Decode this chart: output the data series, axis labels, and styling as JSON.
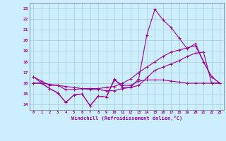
{
  "xlabel": "Windchill (Refroidissement éolien,°C)",
  "x_values": [
    0,
    1,
    2,
    3,
    4,
    5,
    6,
    7,
    8,
    9,
    10,
    11,
    12,
    13,
    14,
    15,
    16,
    17,
    18,
    19,
    20,
    21,
    22,
    23
  ],
  "series1": [
    16.6,
    16.0,
    15.5,
    15.1,
    14.2,
    14.9,
    15.0,
    13.9,
    14.8,
    14.7,
    16.4,
    15.6,
    15.6,
    16.4,
    20.5,
    22.9,
    21.9,
    21.2,
    20.2,
    19.2,
    19.7,
    18.0,
    16.6,
    16.0
  ],
  "series2": [
    16.0,
    16.0,
    15.9,
    15.8,
    15.7,
    15.6,
    15.5,
    15.4,
    15.4,
    15.3,
    15.3,
    15.5,
    15.6,
    15.8,
    16.5,
    17.2,
    17.5,
    17.8,
    18.1,
    18.5,
    18.8,
    18.9,
    16.0,
    16.0
  ],
  "series3": [
    16.6,
    16.2,
    15.8,
    15.8,
    15.4,
    15.4,
    15.5,
    15.5,
    15.5,
    15.6,
    15.7,
    16.0,
    16.4,
    17.0,
    17.5,
    18.0,
    18.5,
    18.9,
    19.1,
    19.3,
    19.5,
    18.0,
    16.6,
    16.0
  ],
  "series4": [
    16.0,
    16.0,
    15.5,
    15.1,
    14.2,
    14.9,
    15.0,
    13.9,
    14.8,
    14.7,
    16.3,
    15.8,
    15.8,
    16.2,
    16.3,
    16.3,
    16.3,
    16.2,
    16.1,
    16.0,
    16.0,
    16.0,
    16.0,
    16.0
  ],
  "line_color": "#990099",
  "bg_color": "#cceeff",
  "grid_color": "#aacccc",
  "ylim": [
    13.5,
    23.5
  ],
  "xlim": [
    -0.5,
    23.5
  ],
  "yticks": [
    14,
    15,
    16,
    17,
    18,
    19,
    20,
    21,
    22,
    23
  ]
}
